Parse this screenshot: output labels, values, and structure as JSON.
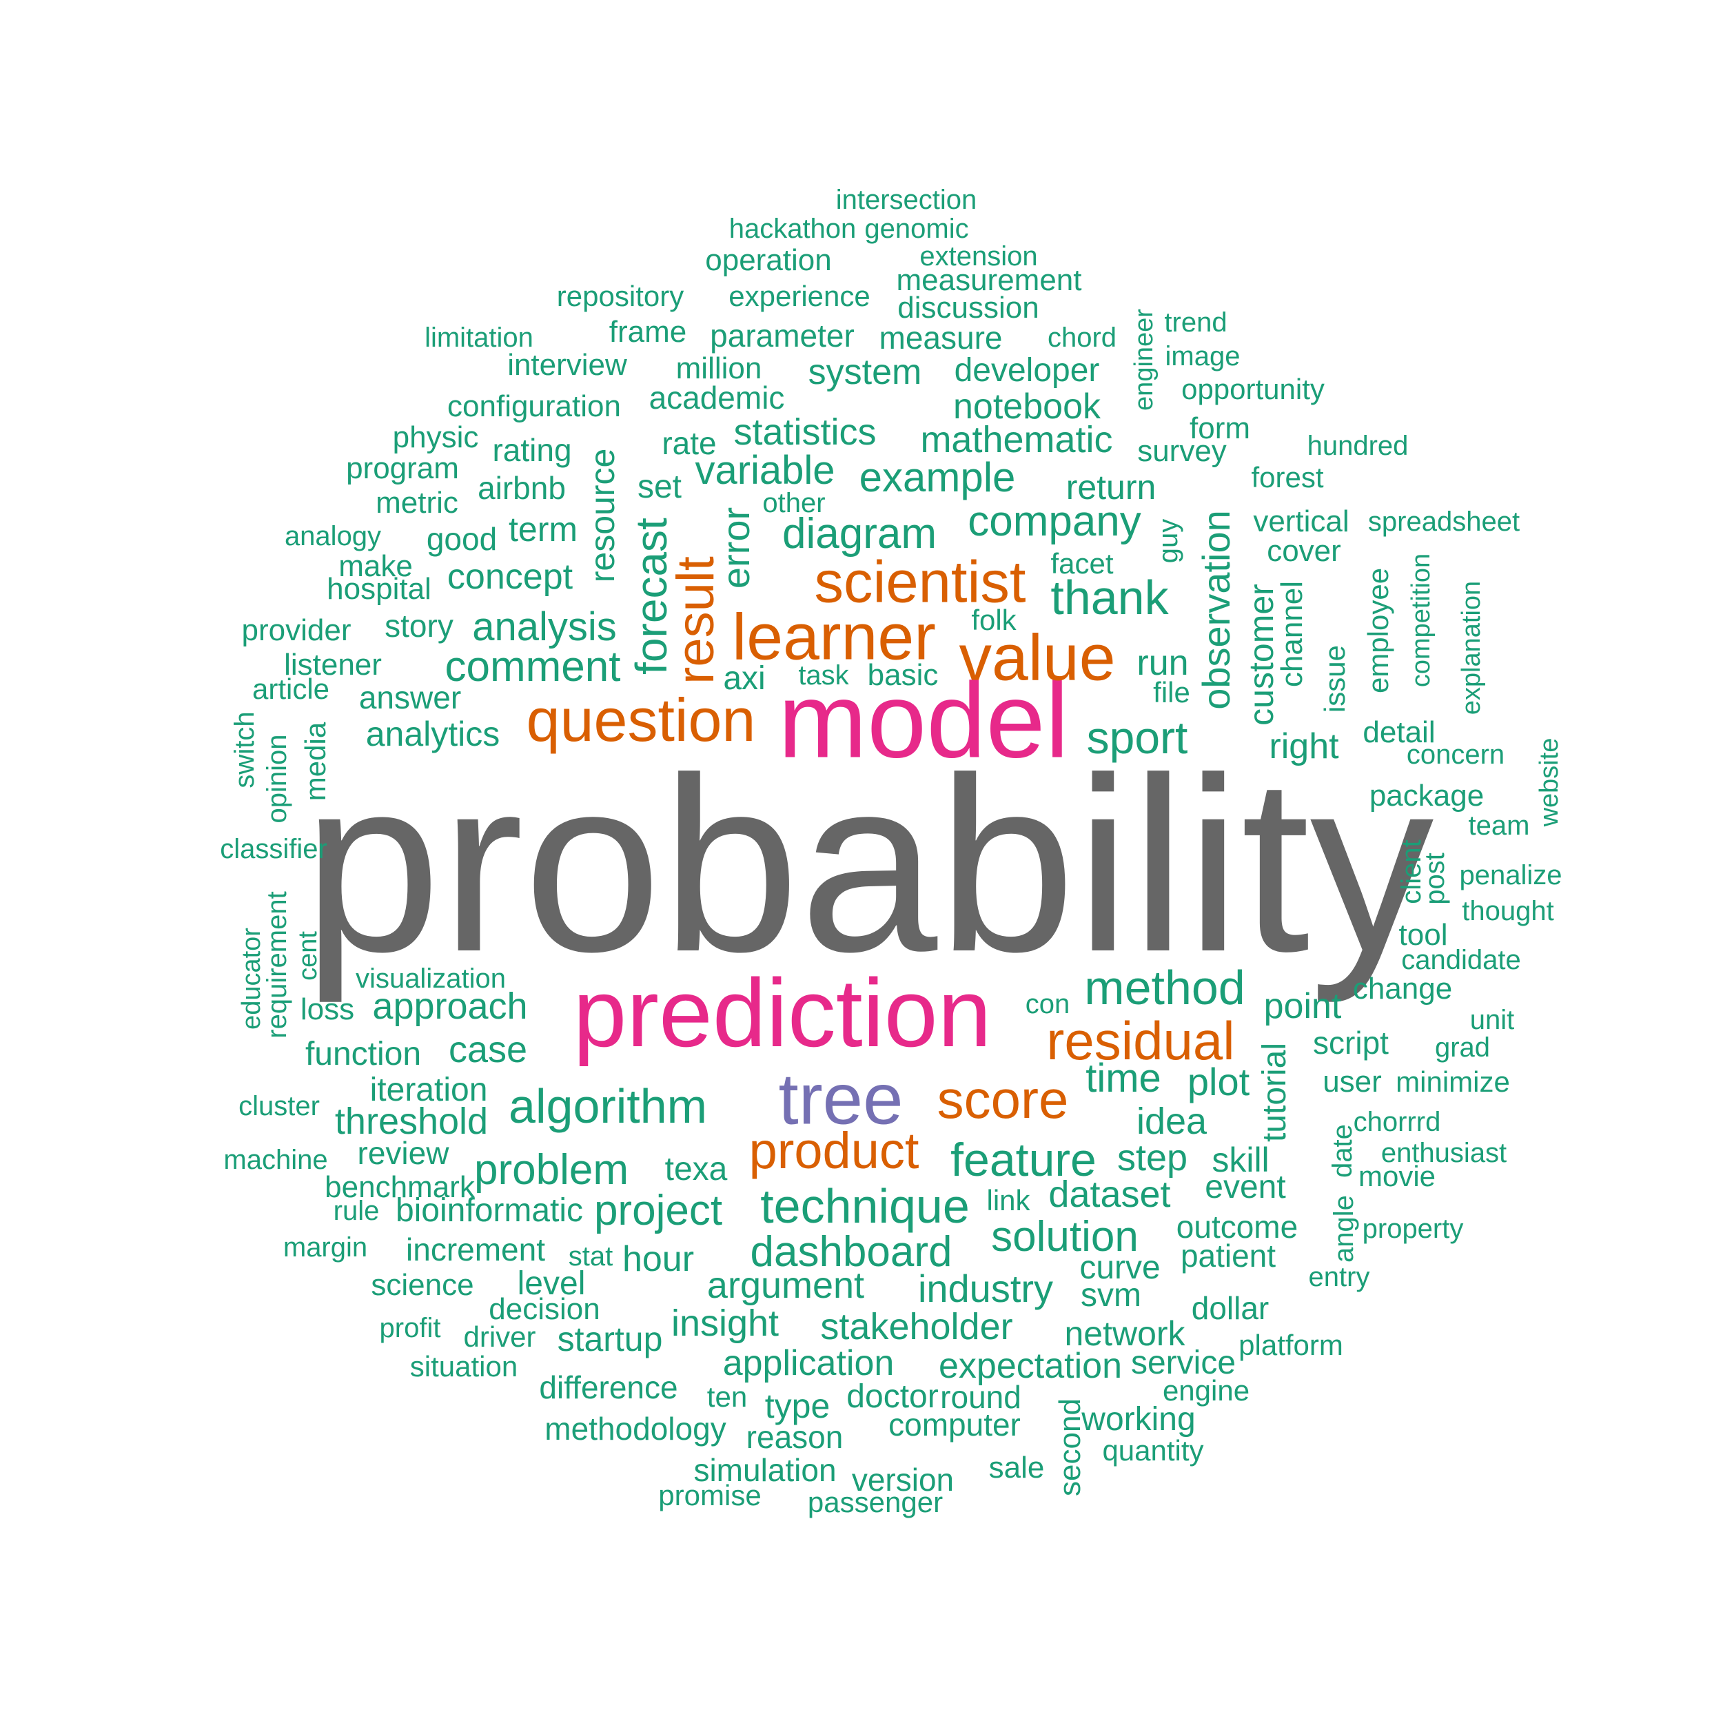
{
  "palette": {
    "gray": "#666666",
    "pink": "#e7298a",
    "purple": "#7570b3",
    "orange": "#d95f02",
    "green": "#1b9e77"
  },
  "words": [
    {
      "text": "probability",
      "color": "gray"
    },
    {
      "text": "model",
      "color": "pink"
    },
    {
      "text": "prediction",
      "color": "pink"
    },
    {
      "text": "tree",
      "color": "purple"
    },
    {
      "text": "learner",
      "color": "orange"
    },
    {
      "text": "value",
      "color": "orange"
    },
    {
      "text": "question",
      "color": "orange"
    },
    {
      "text": "scientist",
      "color": "orange"
    },
    {
      "text": "result",
      "color": "orange"
    },
    {
      "text": "residual",
      "color": "orange"
    },
    {
      "text": "score",
      "color": "orange"
    },
    {
      "text": "product",
      "color": "orange"
    },
    {
      "text": "intersection",
      "color": "green"
    },
    {
      "text": "hackathon",
      "color": "green"
    },
    {
      "text": "genomic",
      "color": "green"
    },
    {
      "text": "operation",
      "color": "green"
    },
    {
      "text": "extension",
      "color": "green"
    },
    {
      "text": "measurement",
      "color": "green"
    },
    {
      "text": "repository",
      "color": "green"
    },
    {
      "text": "experience",
      "color": "green"
    },
    {
      "text": "discussion",
      "color": "green"
    },
    {
      "text": "engineer",
      "color": "green"
    },
    {
      "text": "trend",
      "color": "green"
    },
    {
      "text": "limitation",
      "color": "green"
    },
    {
      "text": "frame",
      "color": "green"
    },
    {
      "text": "parameter",
      "color": "green"
    },
    {
      "text": "measure",
      "color": "green"
    },
    {
      "text": "chord",
      "color": "green"
    },
    {
      "text": "image",
      "color": "green"
    },
    {
      "text": "interview",
      "color": "green"
    },
    {
      "text": "million",
      "color": "green"
    },
    {
      "text": "system",
      "color": "green"
    },
    {
      "text": "developer",
      "color": "green"
    },
    {
      "text": "opportunity",
      "color": "green"
    },
    {
      "text": "configuration",
      "color": "green"
    },
    {
      "text": "academic",
      "color": "green"
    },
    {
      "text": "notebook",
      "color": "green"
    },
    {
      "text": "physic",
      "color": "green"
    },
    {
      "text": "statistics",
      "color": "green"
    },
    {
      "text": "form",
      "color": "green"
    },
    {
      "text": "rating",
      "color": "green"
    },
    {
      "text": "rate",
      "color": "green"
    },
    {
      "text": "mathematic",
      "color": "green"
    },
    {
      "text": "survey",
      "color": "green"
    },
    {
      "text": "hundred",
      "color": "green"
    },
    {
      "text": "program",
      "color": "green"
    },
    {
      "text": "resource",
      "color": "green"
    },
    {
      "text": "variable",
      "color": "green"
    },
    {
      "text": "example",
      "color": "green"
    },
    {
      "text": "forest",
      "color": "green"
    },
    {
      "text": "airbnb",
      "color": "green"
    },
    {
      "text": "set",
      "color": "green"
    },
    {
      "text": "return",
      "color": "green"
    },
    {
      "text": "metric",
      "color": "green"
    },
    {
      "text": "other",
      "color": "green"
    },
    {
      "text": "observation",
      "color": "green"
    },
    {
      "text": "guy",
      "color": "green"
    },
    {
      "text": "vertical",
      "color": "green"
    },
    {
      "text": "spreadsheet",
      "color": "green"
    },
    {
      "text": "analogy",
      "color": "green"
    },
    {
      "text": "good",
      "color": "green"
    },
    {
      "text": "term",
      "color": "green"
    },
    {
      "text": "error",
      "color": "green"
    },
    {
      "text": "diagram",
      "color": "green"
    },
    {
      "text": "company",
      "color": "green"
    },
    {
      "text": "cover",
      "color": "green"
    },
    {
      "text": "make",
      "color": "green"
    },
    {
      "text": "forecast",
      "color": "green"
    },
    {
      "text": "facet",
      "color": "green"
    },
    {
      "text": "competition",
      "color": "green"
    },
    {
      "text": "hospital",
      "color": "green"
    },
    {
      "text": "concept",
      "color": "green"
    },
    {
      "text": "thank",
      "color": "green"
    },
    {
      "text": "employee",
      "color": "green"
    },
    {
      "text": "explanation",
      "color": "green"
    },
    {
      "text": "customer",
      "color": "green"
    },
    {
      "text": "channel",
      "color": "green"
    },
    {
      "text": "provider",
      "color": "green"
    },
    {
      "text": "story",
      "color": "green"
    },
    {
      "text": "analysis",
      "color": "green"
    },
    {
      "text": "folk",
      "color": "green"
    },
    {
      "text": "listener",
      "color": "green"
    },
    {
      "text": "comment",
      "color": "green"
    },
    {
      "text": "task",
      "color": "green"
    },
    {
      "text": "basic",
      "color": "green"
    },
    {
      "text": "run",
      "color": "green"
    },
    {
      "text": "issue",
      "color": "green"
    },
    {
      "text": "article",
      "color": "green"
    },
    {
      "text": "axi",
      "color": "green"
    },
    {
      "text": "file",
      "color": "green"
    },
    {
      "text": "answer",
      "color": "green"
    },
    {
      "text": "switch",
      "color": "green"
    },
    {
      "text": "media",
      "color": "green"
    },
    {
      "text": "analytics",
      "color": "green"
    },
    {
      "text": "sport",
      "color": "green"
    },
    {
      "text": "detail",
      "color": "green"
    },
    {
      "text": "right",
      "color": "green"
    },
    {
      "text": "opinion",
      "color": "green"
    },
    {
      "text": "concern",
      "color": "green"
    },
    {
      "text": "website",
      "color": "green"
    },
    {
      "text": "package",
      "color": "green"
    },
    {
      "text": "team",
      "color": "green"
    },
    {
      "text": "classifier",
      "color": "green"
    },
    {
      "text": "client",
      "color": "green"
    },
    {
      "text": "post",
      "color": "green"
    },
    {
      "text": "penalize",
      "color": "green"
    },
    {
      "text": "requirement",
      "color": "green"
    },
    {
      "text": "thought",
      "color": "green"
    },
    {
      "text": "educator",
      "color": "green"
    },
    {
      "text": "cent",
      "color": "green"
    },
    {
      "text": "tool",
      "color": "green"
    },
    {
      "text": "candidate",
      "color": "green"
    },
    {
      "text": "visualization",
      "color": "green"
    },
    {
      "text": "method",
      "color": "green"
    },
    {
      "text": "change",
      "color": "green"
    },
    {
      "text": "loss",
      "color": "green"
    },
    {
      "text": "approach",
      "color": "green"
    },
    {
      "text": "con",
      "color": "green"
    },
    {
      "text": "point",
      "color": "green"
    },
    {
      "text": "unit",
      "color": "green"
    },
    {
      "text": "function",
      "color": "green"
    },
    {
      "text": "case",
      "color": "green"
    },
    {
      "text": "tutorial",
      "color": "green"
    },
    {
      "text": "script",
      "color": "green"
    },
    {
      "text": "grad",
      "color": "green"
    },
    {
      "text": "time",
      "color": "green"
    },
    {
      "text": "plot",
      "color": "green"
    },
    {
      "text": "user",
      "color": "green"
    },
    {
      "text": "minimize",
      "color": "green"
    },
    {
      "text": "iteration",
      "color": "green"
    },
    {
      "text": "algorithm",
      "color": "green"
    },
    {
      "text": "cluster",
      "color": "green"
    },
    {
      "text": "threshold",
      "color": "green"
    },
    {
      "text": "idea",
      "color": "green"
    },
    {
      "text": "chorrrd",
      "color": "green"
    },
    {
      "text": "date",
      "color": "green"
    },
    {
      "text": "review",
      "color": "green"
    },
    {
      "text": "feature",
      "color": "green"
    },
    {
      "text": "enthusiast",
      "color": "green"
    },
    {
      "text": "machine",
      "color": "green"
    },
    {
      "text": "problem",
      "color": "green"
    },
    {
      "text": "texa",
      "color": "green"
    },
    {
      "text": "step",
      "color": "green"
    },
    {
      "text": "skill",
      "color": "green"
    },
    {
      "text": "movie",
      "color": "green"
    },
    {
      "text": "benchmark",
      "color": "green"
    },
    {
      "text": "event",
      "color": "green"
    },
    {
      "text": "angle",
      "color": "green"
    },
    {
      "text": "technique",
      "color": "green"
    },
    {
      "text": "dataset",
      "color": "green"
    },
    {
      "text": "link",
      "color": "green"
    },
    {
      "text": "rule",
      "color": "green"
    },
    {
      "text": "bioinformatic",
      "color": "green"
    },
    {
      "text": "project",
      "color": "green"
    },
    {
      "text": "outcome",
      "color": "green"
    },
    {
      "text": "property",
      "color": "green"
    },
    {
      "text": "solution",
      "color": "green"
    },
    {
      "text": "margin",
      "color": "green"
    },
    {
      "text": "increment",
      "color": "green"
    },
    {
      "text": "dashboard",
      "color": "green"
    },
    {
      "text": "patient",
      "color": "green"
    },
    {
      "text": "stat",
      "color": "green"
    },
    {
      "text": "hour",
      "color": "green"
    },
    {
      "text": "curve",
      "color": "green"
    },
    {
      "text": "entry",
      "color": "green"
    },
    {
      "text": "science",
      "color": "green"
    },
    {
      "text": "level",
      "color": "green"
    },
    {
      "text": "argument",
      "color": "green"
    },
    {
      "text": "industry",
      "color": "green"
    },
    {
      "text": "svm",
      "color": "green"
    },
    {
      "text": "decision",
      "color": "green"
    },
    {
      "text": "dollar",
      "color": "green"
    },
    {
      "text": "profit",
      "color": "green"
    },
    {
      "text": "insight",
      "color": "green"
    },
    {
      "text": "stakeholder",
      "color": "green"
    },
    {
      "text": "network",
      "color": "green"
    },
    {
      "text": "driver",
      "color": "green"
    },
    {
      "text": "startup",
      "color": "green"
    },
    {
      "text": "platform",
      "color": "green"
    },
    {
      "text": "situation",
      "color": "green"
    },
    {
      "text": "application",
      "color": "green"
    },
    {
      "text": "expectation",
      "color": "green"
    },
    {
      "text": "service",
      "color": "green"
    },
    {
      "text": "difference",
      "color": "green"
    },
    {
      "text": "engine",
      "color": "green"
    },
    {
      "text": "ten",
      "color": "green"
    },
    {
      "text": "doctor",
      "color": "green"
    },
    {
      "text": "round",
      "color": "green"
    },
    {
      "text": "type",
      "color": "green"
    },
    {
      "text": "second",
      "color": "green"
    },
    {
      "text": "working",
      "color": "green"
    },
    {
      "text": "methodology",
      "color": "green"
    },
    {
      "text": "computer",
      "color": "green"
    },
    {
      "text": "reason",
      "color": "green"
    },
    {
      "text": "quantity",
      "color": "green"
    },
    {
      "text": "simulation",
      "color": "green"
    },
    {
      "text": "version",
      "color": "green"
    },
    {
      "text": "sale",
      "color": "green"
    },
    {
      "text": "promise",
      "color": "green"
    },
    {
      "text": "passenger",
      "color": "green"
    }
  ]
}
